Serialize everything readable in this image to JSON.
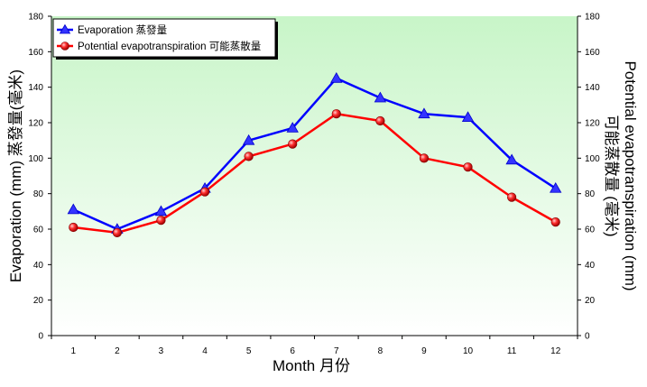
{
  "chart_data": {
    "type": "line",
    "title": "",
    "xlabel": "Month 月份",
    "ylabel": "Evaporation (mm) 蒸發量(毫米)",
    "y2label_line1": "Potential evapotranspiration (mm)",
    "y2label_line2": "可能蒸散量 (毫米)",
    "categories": [
      "1",
      "2",
      "3",
      "4",
      "5",
      "6",
      "7",
      "8",
      "9",
      "10",
      "11",
      "12"
    ],
    "ylim": [
      0,
      180
    ],
    "y2lim": [
      0,
      180
    ],
    "yticks": [
      "0",
      "20",
      "40",
      "60",
      "80",
      "100",
      "120",
      "140",
      "160",
      "180"
    ],
    "grid": false,
    "legend_position": "top-left",
    "series": [
      {
        "name": "Evaporation 蒸發量",
        "values": [
          71,
          60,
          70,
          83,
          110,
          117,
          145,
          134,
          125,
          123,
          99,
          83
        ],
        "color": "#0000ff",
        "marker": "triangle",
        "axis": "left"
      },
      {
        "name": "Potential evapotranspiration 可能蒸散量",
        "values": [
          61,
          58,
          65,
          81,
          101,
          108,
          125,
          121,
          100,
          95,
          78,
          64
        ],
        "color": "#ff0000",
        "marker": "circle",
        "axis": "right"
      }
    ],
    "background_gradient": [
      "#c8f5c8",
      "#ffffff"
    ]
  }
}
